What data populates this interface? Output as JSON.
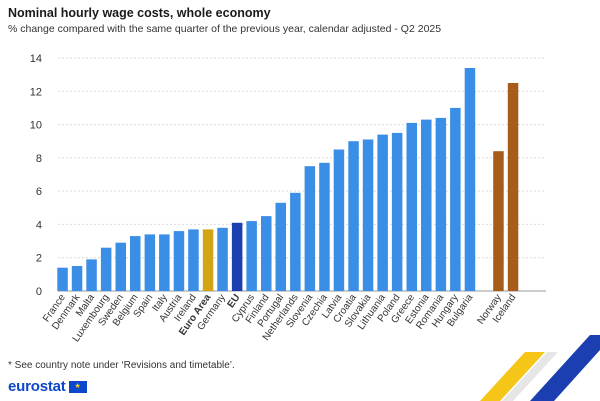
{
  "header": {
    "title": "Nominal hourly wage costs, whole economy",
    "subtitle": "% change compared with the same quarter of the previous year, calendar adjusted - Q2 2025"
  },
  "footer": {
    "note": "* See country note under ‘Revisions and timetable’.",
    "brand": "eurostat"
  },
  "colors": {
    "country": "#3a8ee6",
    "euro_area": "#d4a417",
    "eu": "#1b3fb0",
    "efta": "#a85c1a",
    "grid": "#d9d9d9"
  },
  "chart_data": {
    "type": "bar",
    "title": "Nominal hourly wage costs, whole economy",
    "subtitle": "% change compared with the same quarter of the previous year, calendar adjusted - Q2 2025",
    "xlabel": "",
    "ylabel": "",
    "ylim": [
      0,
      14
    ],
    "yticks": [
      0,
      2,
      4,
      6,
      8,
      10,
      12,
      14
    ],
    "grid": true,
    "categories": [
      "France",
      "Denmark",
      "Malta",
      "Luxembourg",
      "Sweden",
      "Belgium",
      "Spain",
      "Italy",
      "Austria",
      "Ireland",
      "Euro Area",
      "Germany",
      "EU",
      "Cyprus",
      "Finland",
      "Portugal",
      "Netherlands",
      "Slovenia",
      "Czechia",
      "Latvia",
      "Croatia",
      "Slovakia",
      "Lithuania",
      "Poland",
      "Greece",
      "Estonia",
      "Romania",
      "Hungary",
      "Bulgaria",
      "Norway",
      "Iceland"
    ],
    "values": [
      1.4,
      1.5,
      1.9,
      2.6,
      2.9,
      3.3,
      3.4,
      3.4,
      3.6,
      3.7,
      3.7,
      3.8,
      4.1,
      4.2,
      4.5,
      5.3,
      5.9,
      7.5,
      7.7,
      8.5,
      9.0,
      9.1,
      9.4,
      9.5,
      10.1,
      10.3,
      10.4,
      11.0,
      13.4,
      8.4,
      12.5
    ],
    "groups": [
      "country",
      "country",
      "country",
      "country",
      "country",
      "country",
      "country",
      "country",
      "country",
      "country",
      "euro_area",
      "country",
      "eu",
      "country",
      "country",
      "country",
      "country",
      "country",
      "country",
      "country",
      "country",
      "country",
      "country",
      "country",
      "country",
      "country",
      "country",
      "country",
      "country",
      "efta",
      "efta"
    ],
    "bold_labels": [
      "Euro Area",
      "EU"
    ]
  }
}
